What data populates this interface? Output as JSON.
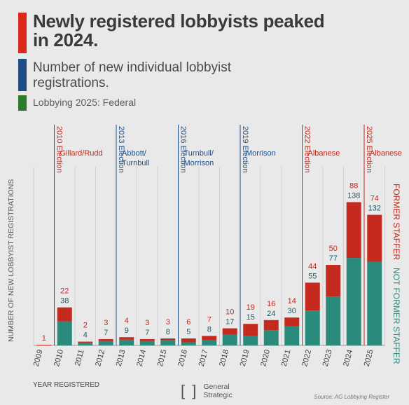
{
  "header": {
    "title": "Newly registered lobbyists peaked in 2024.",
    "subtitle": "Number of new individual lobbyist registrations.",
    "kicker": "Lobbying 2025: Federal",
    "colors": {
      "red": "#d8291c",
      "blue": "#1f4e87",
      "green": "#2d7a2a"
    }
  },
  "chart_data": {
    "type": "bar",
    "stacked": true,
    "categories": [
      "2009",
      "2010",
      "2011",
      "2012",
      "2013",
      "2014",
      "2015",
      "2016",
      "2017",
      "2018",
      "2019",
      "2020",
      "2021",
      "2022",
      "2023",
      "2024",
      "2025"
    ],
    "series": [
      {
        "name": "NOT FORMER STAFFER",
        "color": "#2a8a7c",
        "values": [
          0,
          38,
          4,
          7,
          9,
          7,
          8,
          5,
          8,
          17,
          15,
          24,
          30,
          55,
          77,
          138,
          132
        ]
      },
      {
        "name": "FORMER STAFFER",
        "color": "#c42a1e",
        "values": [
          1,
          22,
          2,
          3,
          4,
          3,
          3,
          6,
          7,
          10,
          19,
          16,
          14,
          44,
          50,
          88,
          74
        ]
      }
    ],
    "ylabel": "NUMBER OF NEW LOBBYIST REGISTRATIONS",
    "xlabel": "YEAR REGISTERED",
    "annotations": [
      {
        "type": "election",
        "label": "2010 Election",
        "color": "#c0281c",
        "at": "2010"
      },
      {
        "type": "election",
        "label": "2013 Election",
        "color": "#1f4e87",
        "at": "2013"
      },
      {
        "type": "election",
        "label": "2016 Election",
        "color": "#1f4e87",
        "at": "2016"
      },
      {
        "type": "election",
        "label": "2019 Election",
        "color": "#1f4e87",
        "at": "2019"
      },
      {
        "type": "election",
        "label": "2022 Election",
        "color": "#c0281c",
        "at": "2022"
      },
      {
        "type": "election",
        "label": "2025 Election",
        "color": "#c0281c",
        "at": "2025"
      },
      {
        "type": "period",
        "label": "Gillard/Rudd",
        "color": "#c0281c",
        "after": "2010"
      },
      {
        "type": "period",
        "label": "Abbott/ Turnbull",
        "color": "#1f4e87",
        "after": "2013"
      },
      {
        "type": "period",
        "label": "Turnbull/ Morrison",
        "color": "#1f4e87",
        "after": "2016"
      },
      {
        "type": "period",
        "label": "Morrison",
        "color": "#1f4e87",
        "after": "2019"
      },
      {
        "type": "period",
        "label": "Albanese",
        "color": "#c0281c",
        "after": "2022"
      },
      {
        "type": "period",
        "label": "Albanese",
        "color": "#c0281c",
        "after": "2025"
      }
    ]
  },
  "footer": {
    "logo_line1": "General",
    "logo_line2": "Strategic",
    "logo_bracket": "[ ]",
    "source": "Source: AG Lobbying Register"
  }
}
